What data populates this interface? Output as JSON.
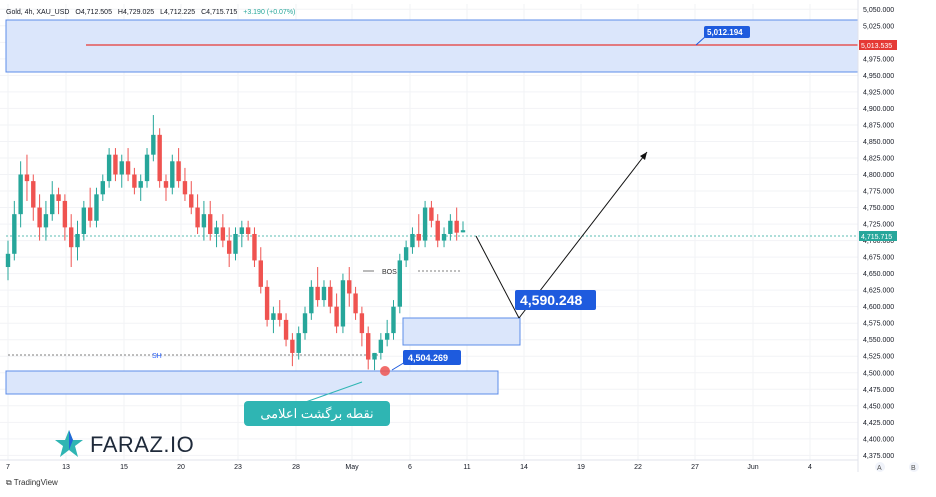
{
  "header": {
    "symbol": "Gold, 4h, XAU_USD",
    "open": "O4,712.505",
    "high": "H4,729.025",
    "low": "L4,712.225",
    "close": "C4,715.715",
    "change": "+3.190 (+0.07%)"
  },
  "chart_data": {
    "type": "candlestick",
    "title": "Gold, 4h, XAU_USD",
    "y_axis_ticks": [
      "5,050.000",
      "5,025.000",
      "5,000.000",
      "4,975.000",
      "4,950.000",
      "4,925.000",
      "4,900.000",
      "4,875.000",
      "4,850.000",
      "4,825.000",
      "4,800.000",
      "4,775.000",
      "4,750.000",
      "4,725.000",
      "4,700.000",
      "4,675.000",
      "4,650.000",
      "4,625.000",
      "4,600.000",
      "4,575.000",
      "4,550.000",
      "4,525.000",
      "4,500.000",
      "4,475.000",
      "4,450.000",
      "4,425.000",
      "4,400.000",
      "4,375.000"
    ],
    "x_axis_ticks": [
      "7",
      "13",
      "15",
      "20",
      "23",
      "28",
      "May",
      "6",
      "11",
      "14",
      "19",
      "22",
      "27",
      "Jun",
      "4"
    ],
    "ylim": [
      4368,
      5058
    ],
    "current_price_label": "4,715.715",
    "resistance_price_label": "5,013.535",
    "resistance_level": 5013.5,
    "series": [
      {
        "values": [
          [
            4660,
            4700,
            4640,
            4680
          ],
          [
            4680,
            4760,
            4670,
            4740
          ],
          [
            4740,
            4820,
            4720,
            4800
          ],
          [
            4800,
            4830,
            4760,
            4790
          ],
          [
            4790,
            4800,
            4730,
            4750
          ],
          [
            4750,
            4770,
            4700,
            4720
          ],
          [
            4720,
            4760,
            4700,
            4740
          ],
          [
            4740,
            4790,
            4730,
            4770
          ],
          [
            4770,
            4780,
            4740,
            4760
          ],
          [
            4760,
            4770,
            4700,
            4720
          ],
          [
            4720,
            4740,
            4660,
            4690
          ],
          [
            4690,
            4730,
            4670,
            4710
          ],
          [
            4710,
            4760,
            4700,
            4750
          ],
          [
            4750,
            4780,
            4720,
            4730
          ],
          [
            4730,
            4780,
            4720,
            4770
          ],
          [
            4770,
            4800,
            4760,
            4790
          ],
          [
            4790,
            4840,
            4780,
            4830
          ],
          [
            4830,
            4840,
            4790,
            4800
          ],
          [
            4800,
            4830,
            4780,
            4820
          ],
          [
            4820,
            4840,
            4790,
            4800
          ],
          [
            4800,
            4810,
            4770,
            4780
          ],
          [
            4780,
            4800,
            4760,
            4790
          ],
          [
            4790,
            4840,
            4780,
            4830
          ],
          [
            4830,
            4890,
            4820,
            4860
          ],
          [
            4860,
            4870,
            4780,
            4790
          ],
          [
            4790,
            4800,
            4760,
            4780
          ],
          [
            4780,
            4830,
            4770,
            4820
          ],
          [
            4820,
            4840,
            4780,
            4790
          ],
          [
            4790,
            4810,
            4760,
            4770
          ],
          [
            4770,
            4790,
            4740,
            4750
          ],
          [
            4750,
            4770,
            4710,
            4720
          ],
          [
            4720,
            4760,
            4700,
            4740
          ],
          [
            4740,
            4760,
            4700,
            4710
          ],
          [
            4710,
            4730,
            4690,
            4720
          ],
          [
            4720,
            4740,
            4690,
            4700
          ],
          [
            4700,
            4720,
            4660,
            4680
          ],
          [
            4680,
            4720,
            4670,
            4710
          ],
          [
            4710,
            4730,
            4690,
            4720
          ],
          [
            4720,
            4730,
            4700,
            4710
          ],
          [
            4710,
            4720,
            4660,
            4670
          ],
          [
            4670,
            4690,
            4620,
            4630
          ],
          [
            4630,
            4640,
            4570,
            4580
          ],
          [
            4580,
            4600,
            4560,
            4590
          ],
          [
            4590,
            4610,
            4570,
            4580
          ],
          [
            4580,
            4590,
            4540,
            4550
          ],
          [
            4550,
            4560,
            4510,
            4530
          ],
          [
            4530,
            4570,
            4520,
            4560
          ],
          [
            4560,
            4600,
            4550,
            4590
          ],
          [
            4590,
            4640,
            4580,
            4630
          ],
          [
            4630,
            4660,
            4600,
            4610
          ],
          [
            4610,
            4640,
            4600,
            4630
          ],
          [
            4630,
            4640,
            4590,
            4600
          ],
          [
            4600,
            4620,
            4560,
            4570
          ],
          [
            4570,
            4650,
            4560,
            4640
          ],
          [
            4640,
            4660,
            4600,
            4620
          ],
          [
            4620,
            4630,
            4580,
            4590
          ],
          [
            4590,
            4600,
            4540,
            4560
          ],
          [
            4560,
            4570,
            4505,
            4520
          ],
          [
            4520,
            4530,
            4504,
            4530
          ],
          [
            4530,
            4560,
            4520,
            4550
          ],
          [
            4550,
            4580,
            4540,
            4560
          ],
          [
            4560,
            4610,
            4550,
            4600
          ],
          [
            4600,
            4680,
            4590,
            4670
          ],
          [
            4670,
            4700,
            4660,
            4690
          ],
          [
            4690,
            4720,
            4680,
            4710
          ],
          [
            4710,
            4740,
            4690,
            4700
          ],
          [
            4700,
            4760,
            4690,
            4750
          ],
          [
            4750,
            4760,
            4720,
            4730
          ],
          [
            4730,
            4740,
            4690,
            4700
          ],
          [
            4700,
            4720,
            4690,
            4710
          ],
          [
            4710,
            4740,
            4700,
            4730
          ],
          [
            4730,
            4750,
            4700,
            4712
          ],
          [
            4712.505,
            4729.025,
            4712.225,
            4715.715
          ]
        ]
      }
    ],
    "annotations": {
      "bos_label": "BOS",
      "sh_label": "SH",
      "low_label": "4,504.269",
      "target_label": "4,590.248",
      "upper_label": "5,012.194",
      "arabic_label": "نقطه  برگشت اعلامی"
    },
    "grid": true
  },
  "footer": {
    "brand": "FARAZ.IO",
    "tradingview": "TradingView"
  },
  "colors": {
    "up": "#26a69a",
    "down": "#ef5350",
    "zone_fill": "#dbe6fb",
    "zone_border": "#5d8de8",
    "label_blue": "#1e5bde",
    "resistance": "#e53935",
    "teal_label": "#2fb5b3"
  }
}
